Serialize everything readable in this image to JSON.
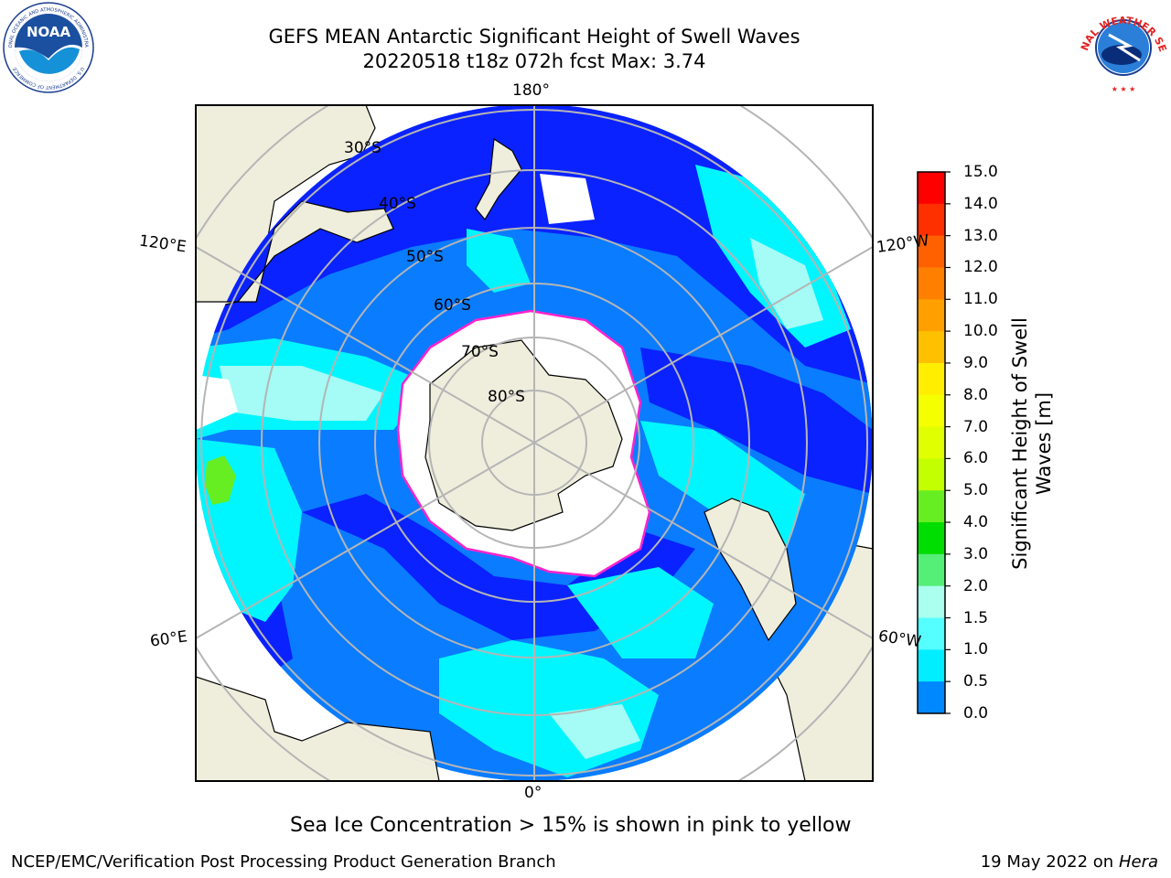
{
  "header": {
    "title_line1": "GEFS MEAN Antarctic Significant Height of Swell Waves",
    "title_line2": "20220518 t18z 072h fcst   Max: 3.74"
  },
  "logos": {
    "left": "NOAA",
    "right": "NATIONAL WEATHER SERVICE"
  },
  "map": {
    "projection": "south-polar-stereographic",
    "longitude_labels": {
      "top": "180°",
      "bottom": "0°",
      "upper_left": "120°E",
      "upper_right": "120°W",
      "lower_left": "60°E",
      "lower_right": "60°W"
    },
    "latitude_labels": [
      "30°S",
      "40°S",
      "50°S",
      "60°S",
      "70°S",
      "80°S"
    ]
  },
  "colorbar": {
    "title": "Significant Height of Swell Waves [m]",
    "ticks": [
      "15.0",
      "14.0",
      "13.0",
      "12.0",
      "11.0",
      "10.0",
      "9.0",
      "8.0",
      "7.0",
      "6.0",
      "5.0",
      "4.0",
      "3.0",
      "2.0",
      "1.5",
      "1.0",
      "0.5",
      "0.0"
    ],
    "colors": [
      "#ff0000",
      "#ff3000",
      "#ff6000",
      "#ff8000",
      "#ffa000",
      "#ffc000",
      "#ffee00",
      "#f5ff00",
      "#e0ff00",
      "#c4ff00",
      "#66ee22",
      "#00dd00",
      "#55ee77",
      "#aaffee",
      "#55ffff",
      "#00eeff",
      "#0088ff",
      "#0022ff"
    ],
    "ocean_colors": {
      "light_cyan": "#a5fbf5",
      "cyan": "#00f6ff",
      "mid_blue": "#0a7cff",
      "deep_blue": "#0a22ff"
    },
    "land_color": "#efeedd",
    "ice_edge_color": "#ff22cc"
  },
  "footnote": "Sea Ice Concentration > 15% is shown in pink to yellow",
  "footer": {
    "credit": "NCEP/EMC/Verification Post Processing Product Generation Branch",
    "date": "19 May 2022 on",
    "machine": "Hera"
  }
}
